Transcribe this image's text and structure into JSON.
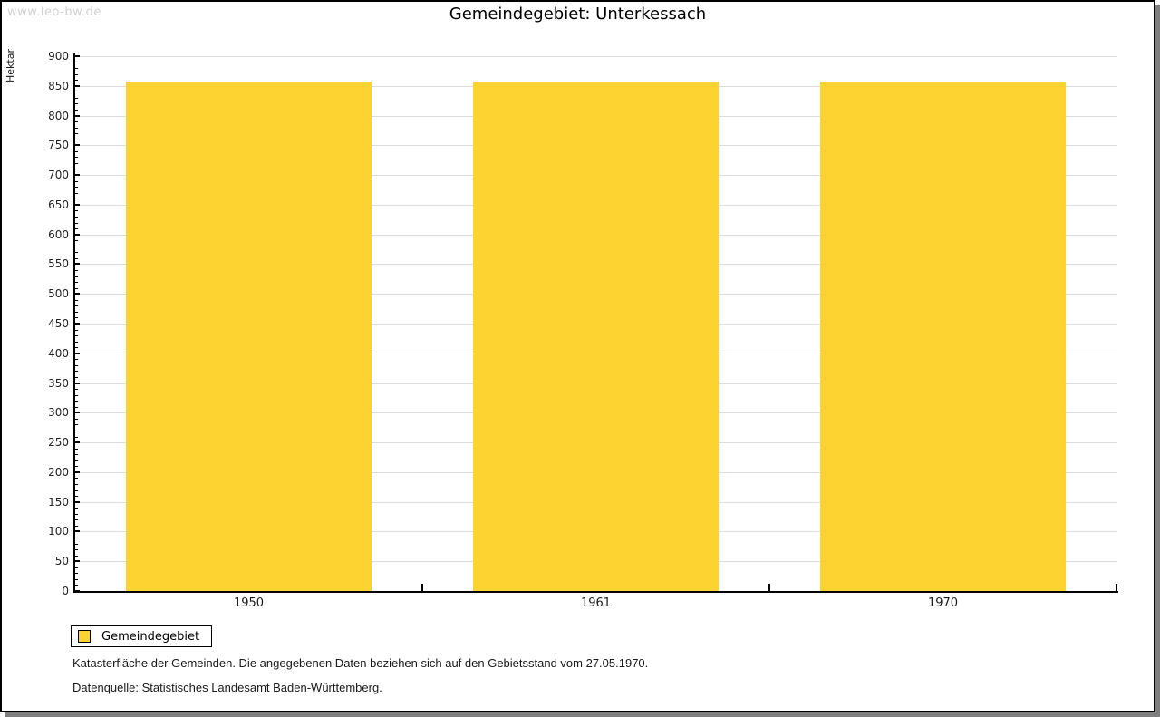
{
  "watermark": "www.leo-bw.de",
  "chart_data": {
    "type": "bar",
    "title": "Gemeindegebiet: Unterkessach",
    "categories": [
      "1950",
      "1961",
      "1970"
    ],
    "series": [
      {
        "name": "Gemeindegebiet",
        "values": [
          858,
          858,
          858
        ]
      }
    ],
    "xlabel": "",
    "ylabel": "Hektar",
    "ylim": [
      0,
      900
    ],
    "y_major_step": 50,
    "y_minor_step": 10,
    "bar_color": "#fcd330",
    "grid": "horizontal-major-on",
    "gridline_color": "#dcdcdc",
    "legend_position": "bottom-left"
  },
  "legend": {
    "label": "Gemeindegebiet",
    "swatch_color": "#fcd330"
  },
  "footer": {
    "line1": "Katasterfläche der Gemeinden. Die angegebenen Daten beziehen sich auf den Gebietsstand vom 27.05.1970.",
    "line2": "Datenquelle: Statistisches Landesamt Baden-Württemberg."
  },
  "colors": {
    "frame_border": "#000000",
    "frame_shadow": "#7f7f7f",
    "axis": "#000000",
    "watermark": "#d2d2d2"
  }
}
